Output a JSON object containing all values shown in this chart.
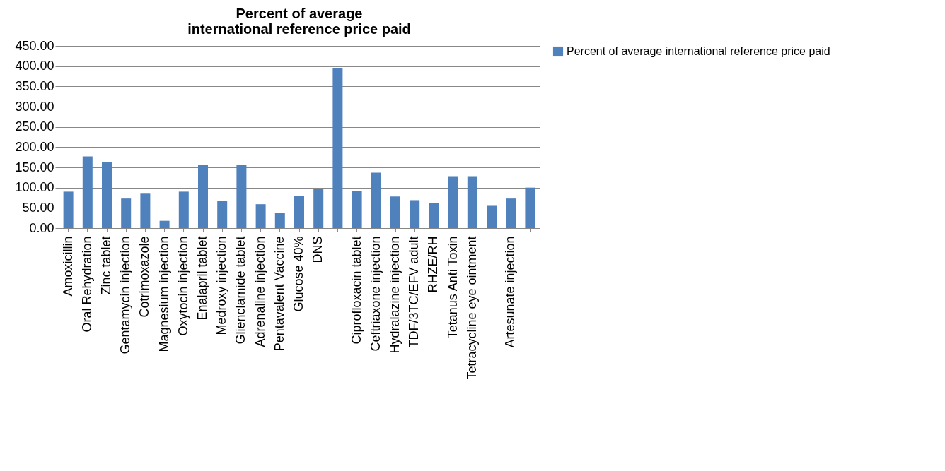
{
  "chart_data": {
    "type": "bar",
    "title": "Percent of average\ninternational reference price paid",
    "categories": [
      "Amoxicillin",
      "Oral Rehydration",
      "Zinc tablet",
      "Gentamycin injection",
      "Cotrimoxazole",
      "Magnesium  injection",
      "Oxytocin injection",
      "Enalapril tablet",
      "Medroxy  injection",
      "Glienclamide tablet",
      "Adrenaline injection",
      "Pentavalent Vaccine",
      "Glucose 40%",
      "DNS",
      null,
      "Ciprofloxacin tablet",
      "Ceftriaxone injection",
      "Hydralazine injection",
      "TDF/3TC/EFV adult",
      "RHZE/RH",
      "Tetanus Anti Toxin",
      "Tetracycline eye ointment",
      null,
      "Artesunate injection",
      null
    ],
    "series": [
      {
        "name": "Percent of average international reference price paid",
        "color": "#4f81bd",
        "values": [
          90,
          177,
          163,
          73,
          85,
          18,
          90,
          156,
          68,
          156,
          59,
          38,
          80,
          96,
          394,
          92,
          137,
          78,
          69,
          62,
          128,
          128,
          55,
          73,
          100
        ]
      }
    ],
    "ylim": [
      0,
      450
    ],
    "yticks": [
      {
        "value": 0,
        "label": "0.00"
      },
      {
        "value": 50,
        "label": "50.00"
      },
      {
        "value": 100,
        "label": "100.00"
      },
      {
        "value": 150,
        "label": "150.00"
      },
      {
        "value": 200,
        "label": "200.00"
      },
      {
        "value": 250,
        "label": "250.00"
      },
      {
        "value": 300,
        "label": "300.00"
      },
      {
        "value": 350,
        "label": "350.00"
      },
      {
        "value": 400,
        "label": "400.00"
      },
      {
        "value": 450,
        "label": "450.00"
      }
    ],
    "grid": "y",
    "legend": "right"
  }
}
